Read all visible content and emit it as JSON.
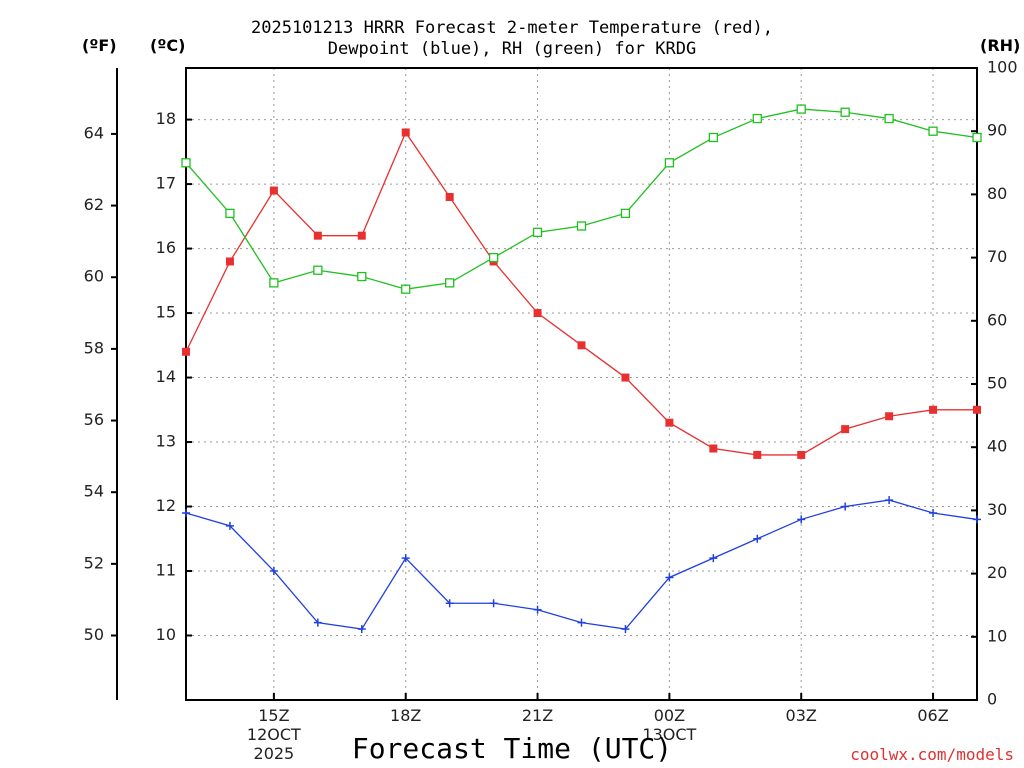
{
  "chart_data": {
    "type": "line",
    "title_line1": "2025101213 HRRR Forecast 2-meter Temperature (red),",
    "title_line2": "Dewpoint (blue), RH (green) for KRDG",
    "xlabel": "Forecast Time (UTC)",
    "credit": "coolwx.com/models",
    "units": {
      "fahrenheit": "(ºF)",
      "celsius": "(ºC)",
      "rh": "(RH)"
    },
    "x_hours": [
      13,
      14,
      15,
      16,
      17,
      18,
      19,
      20,
      21,
      22,
      23,
      24,
      25,
      26,
      27,
      28,
      29,
      30,
      31
    ],
    "xlim": [
      13,
      31
    ],
    "x_ticks": [
      {
        "hour": 15,
        "label": "15Z",
        "sub1": "12OCT",
        "sub2": "2025"
      },
      {
        "hour": 18,
        "label": "18Z",
        "sub1": "",
        "sub2": ""
      },
      {
        "hour": 21,
        "label": "21Z",
        "sub1": "",
        "sub2": ""
      },
      {
        "hour": 24,
        "label": "00Z",
        "sub1": "13OCT",
        "sub2": ""
      },
      {
        "hour": 27,
        "label": "03Z",
        "sub1": "",
        "sub2": ""
      },
      {
        "hour": 30,
        "label": "06Z",
        "sub1": "",
        "sub2": ""
      }
    ],
    "celsius_ylim": [
      9.0,
      18.8
    ],
    "celsius_ticks": [
      "10",
      "11",
      "12",
      "13",
      "14",
      "15",
      "16",
      "17",
      "18"
    ],
    "fahrenheit_ticks": [
      "50",
      "52",
      "54",
      "56",
      "58",
      "60",
      "62",
      "64"
    ],
    "rh_ylim": [
      0,
      100
    ],
    "rh_ticks": [
      "0",
      "10",
      "20",
      "30",
      "40",
      "50",
      "60",
      "70",
      "80",
      "90",
      "100"
    ],
    "series": [
      {
        "name": "Temperature",
        "axis": "celsius",
        "color": "#e83030",
        "marker": "filled-square",
        "values": [
          14.4,
          15.8,
          16.9,
          16.2,
          16.2,
          17.8,
          16.8,
          15.8,
          15.0,
          14.5,
          14.0,
          13.3,
          12.9,
          12.8,
          12.8,
          13.2,
          13.4,
          13.5,
          13.5
        ]
      },
      {
        "name": "Dewpoint",
        "axis": "celsius",
        "color": "#2040e0",
        "marker": "plus",
        "values": [
          11.9,
          11.7,
          11.0,
          10.2,
          10.1,
          11.2,
          10.5,
          10.5,
          10.4,
          10.2,
          10.1,
          10.9,
          11.2,
          11.5,
          11.8,
          12.0,
          12.1,
          11.9,
          11.8
        ]
      },
      {
        "name": "RH",
        "axis": "rh",
        "color": "#20c020",
        "marker": "open-square",
        "values": [
          85,
          77,
          66,
          68,
          67,
          65,
          66,
          70,
          74,
          75,
          77,
          85,
          89,
          92,
          93.5,
          93,
          92,
          90,
          89
        ]
      }
    ]
  }
}
